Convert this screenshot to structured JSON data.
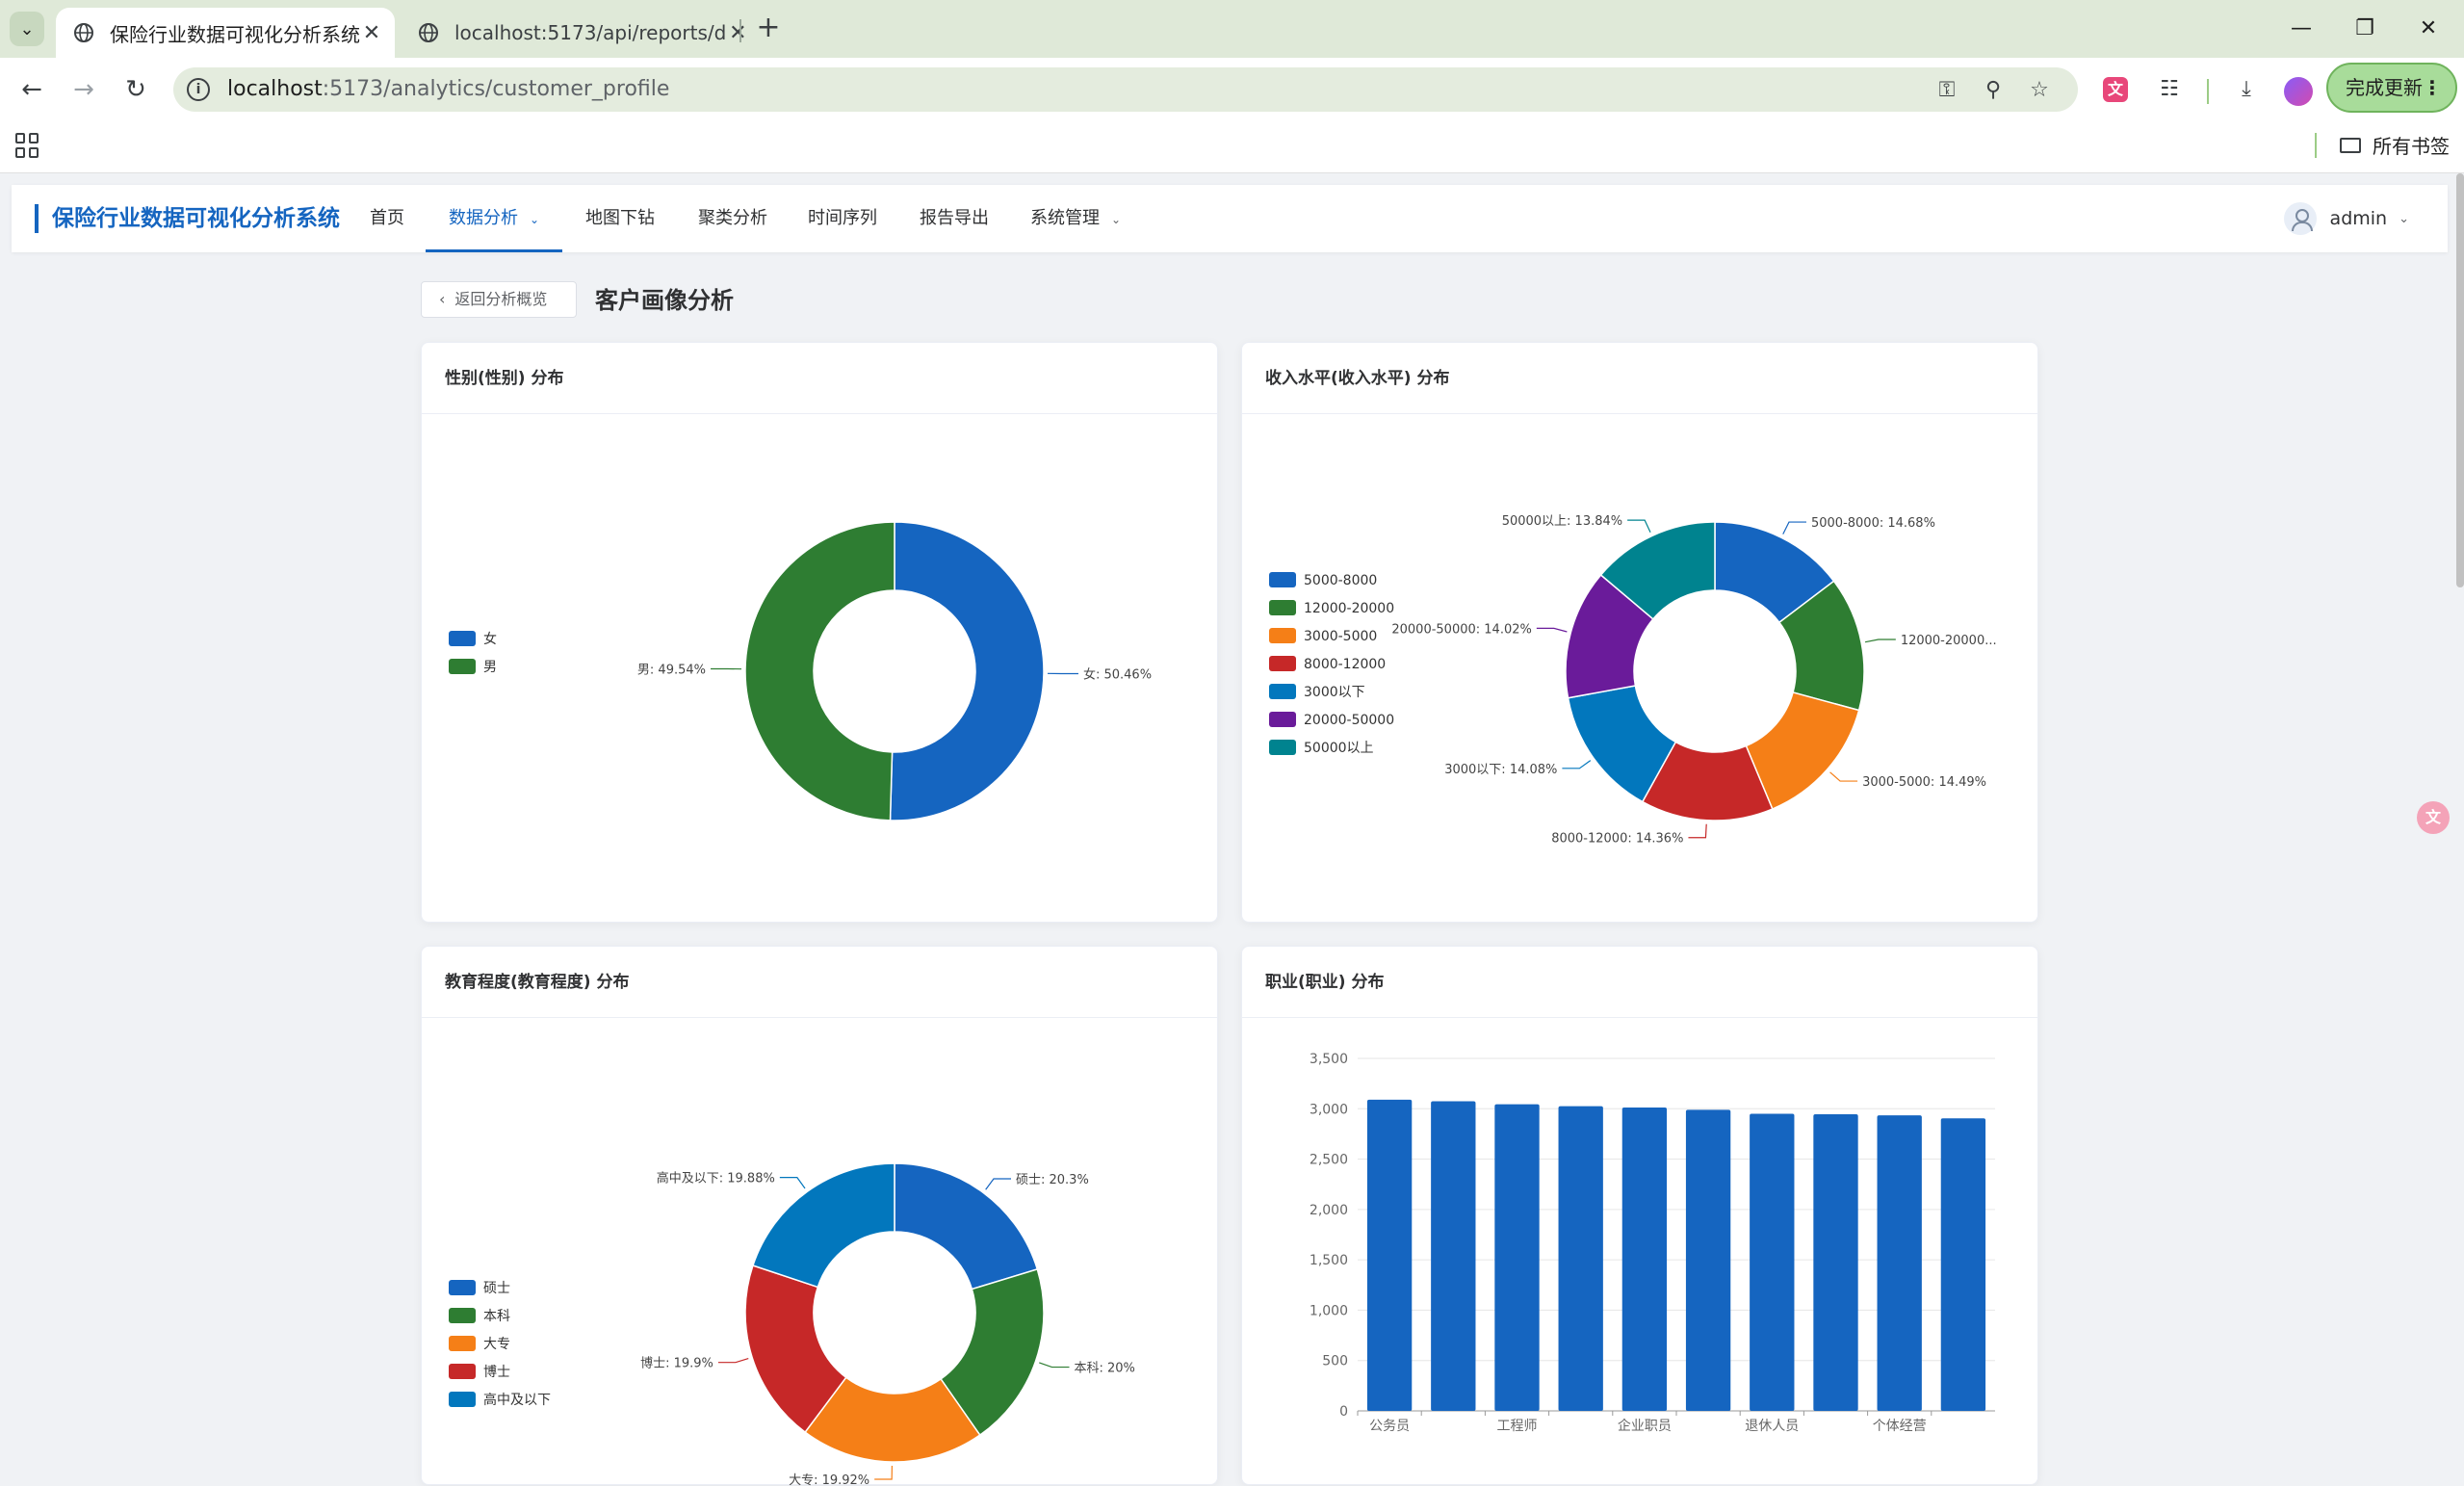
{
  "browser": {
    "tabs": [
      {
        "title": "保险行业数据可视化分析系统",
        "active": true
      },
      {
        "title": "localhost:5173/api/reports/d",
        "active": false
      }
    ],
    "url_host": "localhost",
    "url_path": ":5173/analytics/customer_profile",
    "update_label": "完成更新",
    "bookmarks_all": "所有书签",
    "translate_ext_label": "文"
  },
  "app": {
    "brand": "保险行业数据可视化分析系统",
    "menu": [
      {
        "label": "首页"
      },
      {
        "label": "数据分析",
        "active": true,
        "has_dropdown": true
      },
      {
        "label": "地图下钻"
      },
      {
        "label": "聚类分析"
      },
      {
        "label": "时间序列"
      },
      {
        "label": "报告导出"
      },
      {
        "label": "系统管理",
        "has_dropdown": true
      }
    ],
    "user": "admin"
  },
  "page": {
    "back_label": "返回分析概览",
    "title": "客户画像分析"
  },
  "colors": {
    "blue": "#1565c0",
    "green": "#2e7d32",
    "orange": "#f57f17",
    "red": "#c62828",
    "lightblue": "#0277bd",
    "purple": "#6a1b9a",
    "teal": "#00838f"
  },
  "chart_data": [
    {
      "id": "gender",
      "title": "性别(性别) 分布",
      "type": "pie",
      "donut": true,
      "legend_position": "left",
      "slices": [
        {
          "name": "女",
          "value": 50.46,
          "label": "女: 50.46%",
          "color": "#1565c0"
        },
        {
          "name": "男",
          "value": 49.54,
          "label": "男: 49.54%",
          "color": "#2e7d32"
        }
      ]
    },
    {
      "id": "income",
      "title": "收入水平(收入水平) 分布",
      "type": "pie",
      "donut": true,
      "legend_position": "left",
      "slices": [
        {
          "name": "5000-8000",
          "value": 14.68,
          "label": "5000-8000: 14.68%",
          "color": "#1565c0"
        },
        {
          "name": "12000-20000",
          "value": 14.53,
          "label": "12000-20000...",
          "color": "#2e7d32"
        },
        {
          "name": "3000-5000",
          "value": 14.49,
          "label": "3000-5000: 14.49%",
          "color": "#f57f17"
        },
        {
          "name": "8000-12000",
          "value": 14.36,
          "label": "8000-12000: 14.36%",
          "color": "#c62828"
        },
        {
          "name": "3000以下",
          "value": 14.08,
          "label": "3000以下: 14.08%",
          "color": "#0277bd"
        },
        {
          "name": "20000-50000",
          "value": 14.02,
          "label": "20000-50000: 14.02%",
          "color": "#6a1b9a"
        },
        {
          "name": "50000以上",
          "value": 13.84,
          "label": "50000以上: 13.84%",
          "color": "#00838f"
        }
      ]
    },
    {
      "id": "education",
      "title": "教育程度(教育程度) 分布",
      "type": "pie",
      "donut": true,
      "legend_position": "left",
      "slices": [
        {
          "name": "硕士",
          "value": 20.3,
          "label": "硕士: 20.3%",
          "color": "#1565c0"
        },
        {
          "name": "本科",
          "value": 20,
          "label": "本科: 20%",
          "color": "#2e7d32"
        },
        {
          "name": "大专",
          "value": 19.92,
          "label": "大专: 19.92%",
          "color": "#f57f17"
        },
        {
          "name": "博士",
          "value": 19.9,
          "label": "博士: 19.9%",
          "color": "#c62828"
        },
        {
          "name": "高中及以下",
          "value": 19.88,
          "label": "高中及以下: 19.88%",
          "color": "#0277bd"
        }
      ]
    },
    {
      "id": "occupation",
      "title": "职业(职业) 分布",
      "type": "bar",
      "categories": [
        "公务员",
        "",
        "工程师",
        "",
        "企业职员",
        "",
        "退休人员",
        "",
        "个体经营",
        ""
      ],
      "values": [
        3090,
        3075,
        3045,
        3025,
        3012,
        2990,
        2950,
        2945,
        2935,
        2905
      ],
      "yticks": [
        "0",
        "500",
        "1,000",
        "1,500",
        "2,000",
        "2,500",
        "3,000",
        "3,500"
      ],
      "ylim": [
        0,
        3500
      ],
      "grid": true,
      "color": "#1565c0"
    }
  ]
}
